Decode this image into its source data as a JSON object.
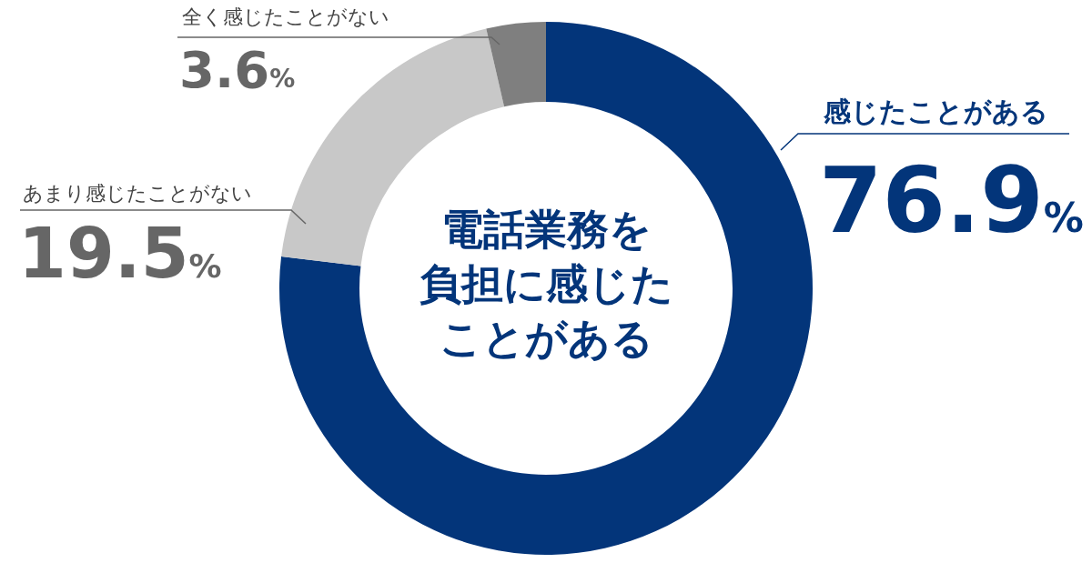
{
  "chart_data": {
    "type": "donut",
    "title": "電話業務を負担に感じたことがある",
    "categories": [
      "感じたことがある",
      "あまり感じたことがない",
      "全く感じたことがない"
    ],
    "values": [
      76.9,
      19.5,
      3.6
    ],
    "colors": [
      "#03357a",
      "#c8c8c8",
      "#7f7f7f"
    ],
    "value_labels": [
      "76.9%",
      "19.5%",
      "3.6%"
    ]
  }
}
